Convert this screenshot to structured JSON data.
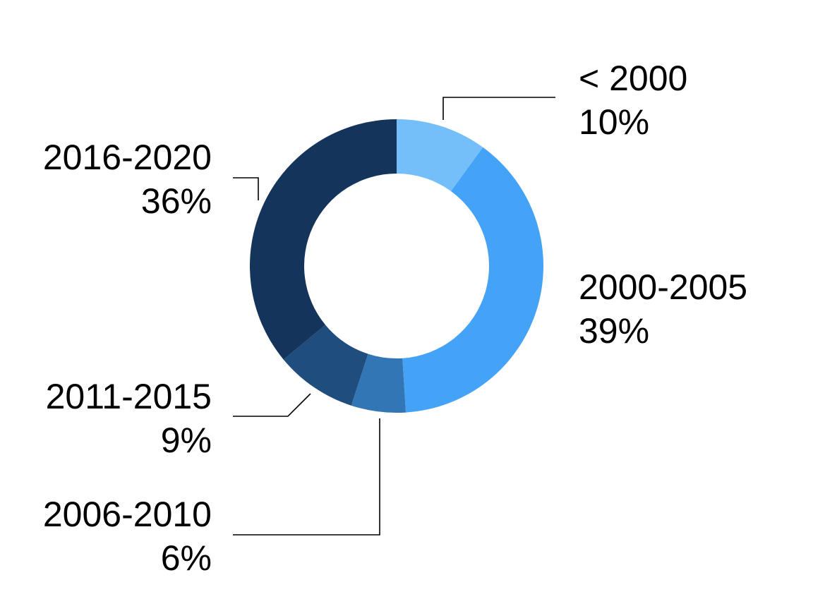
{
  "chart_data": {
    "type": "pie",
    "variant": "donut",
    "legend": "none",
    "slices": [
      {
        "label": "< 2000",
        "percent_label": "10%",
        "value": 10,
        "color": "#74bff9"
      },
      {
        "label": "2000-2005",
        "percent_label": "39%",
        "value": 39,
        "color": "#45a3f7"
      },
      {
        "label": "2006-2010",
        "percent_label": "6%",
        "value": 6,
        "color": "#3276b5"
      },
      {
        "label": "2011-2015",
        "percent_label": "9%",
        "value": 9,
        "color": "#1f4d7e"
      },
      {
        "label": "2016-2020",
        "percent_label": "36%",
        "value": 36,
        "color": "#14345c"
      }
    ]
  }
}
